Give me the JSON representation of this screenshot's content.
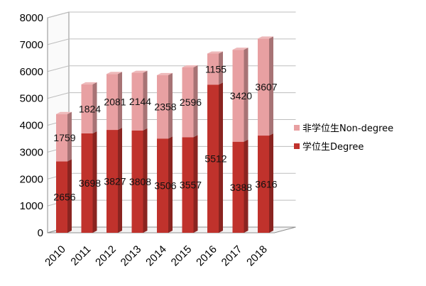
{
  "chart_data": {
    "type": "bar",
    "stacked": true,
    "three_d": true,
    "categories": [
      "2010",
      "2011",
      "2012",
      "2013",
      "2014",
      "2015",
      "2016",
      "2017",
      "2018"
    ],
    "series": [
      {
        "name": "学位生Degree",
        "color": "#c0322c",
        "values": [
          2656,
          3698,
          3827,
          3808,
          3506,
          3557,
          5512,
          3388,
          3616
        ]
      },
      {
        "name": "非学位生Non-degree",
        "color": "#e8a0a2",
        "values": [
          1759,
          1824,
          2081,
          2144,
          2358,
          2596,
          1155,
          3420,
          3607
        ]
      }
    ],
    "data_labels": {
      "series_0": [
        "2656",
        "3698",
        "3827",
        "3808",
        "3506",
        "3557",
        "5512",
        "3388",
        "3616"
      ],
      "series_1": [
        "1759",
        "1824",
        "2081",
        "2144",
        "2358",
        "2596",
        "1155",
        "3420",
        "3607"
      ]
    },
    "yticks": [
      "0",
      "1000",
      "2000",
      "3000",
      "4000",
      "5000",
      "6000",
      "7000",
      "8000"
    ],
    "ylim": [
      0,
      8000
    ],
    "grid": true,
    "legend": {
      "placement": "right",
      "entries": [
        "非学位生Non-degree",
        "学位生Degree"
      ]
    },
    "title": "",
    "xlabel": "",
    "ylabel": ""
  }
}
